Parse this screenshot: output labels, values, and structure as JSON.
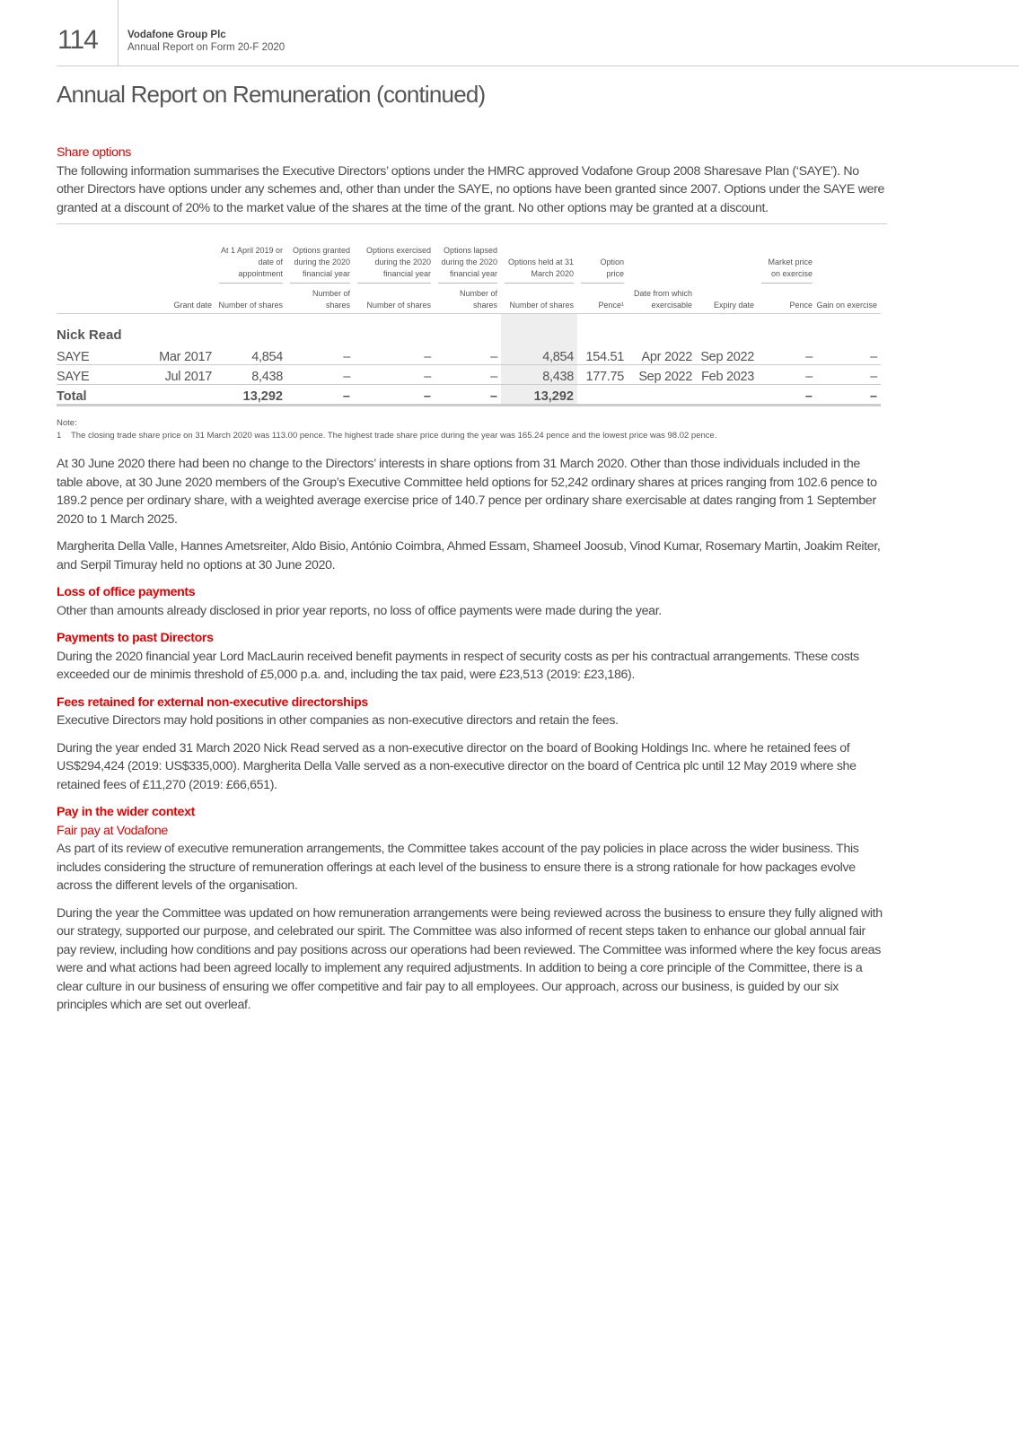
{
  "header": {
    "page_number": "114",
    "company": "Vodafone Group Plc",
    "subtitle": "Annual Report on Form 20-F 2020"
  },
  "title": "Annual Report on Remuneration (continued)",
  "share_options": {
    "heading": "Share options",
    "intro": "The following information summarises the Executive Directors’ options under the HMRC approved Vodafone Group 2008 Sharesave Plan (‘SAYE’). No other Directors have options under any schemes and, other than under the SAYE, no options have been granted since 2007. Options under the SAYE were granted at a discount of 20% to the market value of the shares at the time of the grant. No other options may be granted at a discount."
  },
  "table": {
    "header_top": [
      "",
      "",
      "At 1 April 2019 or date of appointment",
      "Options granted during the 2020 financial year",
      "Options exercised during the 2020 financial year",
      "Options lapsed during the 2020 financial year",
      "Options held at 31 March 2020",
      "Option price",
      "",
      "",
      "Market price on exercise",
      ""
    ],
    "header_bottom": [
      "",
      "Grant date",
      "Number of shares",
      "Number of shares",
      "Number of shares",
      "Number of shares",
      "Number of shares",
      "Pence¹",
      "Date from which exercisable",
      "Expiry date",
      "Pence",
      "Gain on exercise"
    ],
    "director": "Nick Read",
    "rows": [
      [
        "SAYE",
        "Mar 2017",
        "4,854",
        "–",
        "–",
        "–",
        "4,854",
        "154.51",
        "Apr 2022",
        "Sep 2022",
        "–",
        "–"
      ],
      [
        "SAYE",
        "Jul 2017",
        "8,438",
        "–",
        "–",
        "–",
        "8,438",
        "177.75",
        "Sep 2022",
        "Feb 2023",
        "–",
        "–"
      ]
    ],
    "total": [
      "Total",
      "",
      "13,292",
      "–",
      "–",
      "–",
      "13,292",
      "",
      "",
      "",
      "–",
      "–"
    ]
  },
  "note": {
    "label": "Note:",
    "num": "1",
    "text": "The closing trade share price on 31 March 2020 was 113.00 pence. The highest trade share price during the year was 165.24 pence and the lowest price was 98.02 pence."
  },
  "para1": "At 30 June 2020 there had been no change to the Directors’ interests in share options from 31 March 2020. Other than those individuals included in the table above, at 30 June 2020 members of the Group’s Executive Committee held options for 52,242 ordinary shares at prices ranging from 102.6 pence to 189.2 pence per ordinary share, with a weighted average exercise price of 140.7 pence per ordinary share exercisable at dates ranging from 1 September 2020 to 1 March 2025.",
  "para2": "Margherita Della Valle, Hannes Ametsreiter, Aldo Bisio, António Coimbra, Ahmed Essam, Shameel Joosub, Vinod Kumar, Rosemary Martin, Joakim Reiter, and Serpil Timuray held no options at 30 June 2020.",
  "loss": {
    "heading": "Loss of office payments",
    "text": "Other than amounts already disclosed in prior year reports, no loss of office payments were made during the year."
  },
  "past": {
    "heading": "Payments to past Directors",
    "text": "During the 2020 financial year Lord MacLaurin received benefit payments in respect of security costs as per his contractual arrangements. These costs exceeded our de minimis threshold of £5,000 p.a. and, including the tax paid, were £23,513 (2019: £23,186)."
  },
  "fees": {
    "heading": "Fees retained for external non-executive directorships",
    "text1": "Executive Directors may hold positions in other companies as non-executive directors and retain the fees.",
    "text2": "During the year ended 31 March 2020 Nick Read served as a non-executive director on the board of Booking Holdings Inc. where he retained fees of US$294,424 (2019: US$335,000). Margherita Della Valle served as a non-executive director on the board of Centrica plc until 12 May 2019 where she retained fees of £11,270 (2019: £66,651)."
  },
  "wider": {
    "heading": "Pay in the wider context",
    "subheading": "Fair pay at Vodafone",
    "text1": "As part of its review of executive remuneration arrangements, the Committee takes account of the pay policies in place across the wider business. This includes considering the structure of remuneration offerings at each level of the business to ensure there is a strong rationale for how packages evolve across the different levels of the organisation.",
    "text2": "During the year the Committee was updated on how remuneration arrangements were being reviewed across the business to ensure they fully aligned with our strategy, supported our purpose, and celebrated our spirit. The Committee was also informed of recent steps taken to enhance our global annual fair pay review, including how conditions and pay positions across our operations had been reviewed. The Committee was informed where the key focus areas were and what actions had been agreed locally to implement any required adjustments. In addition to being a core principle of the Committee, there is a clear culture in our business of ensuring we offer competitive and fair pay to all employees. Our approach, across our business, is guided by our six principles which are set out overleaf."
  },
  "colors": {
    "accent": "#e60000",
    "text": "#4a4a4a"
  }
}
